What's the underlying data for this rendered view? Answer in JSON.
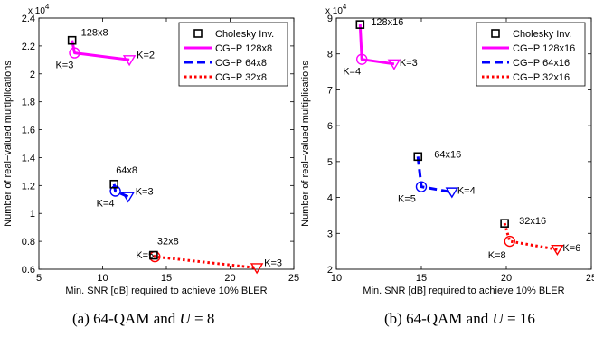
{
  "chart_data": [
    {
      "type": "line",
      "caption": {
        "prefix": "(a) 64-QAM and ",
        "var": "U",
        "suffix": " = 8"
      },
      "xlabel": "Min. SNR [dB] required to achieve 10% BLER",
      "ylabel": "Number of real−valued multiplications",
      "xlim": [
        5,
        25
      ],
      "ylim": [
        0.6,
        2.4
      ],
      "xticks": [
        5,
        10,
        15,
        20,
        25
      ],
      "yticks": [
        0.6,
        0.8,
        1,
        1.2,
        1.4,
        1.6,
        1.8,
        2,
        2.2,
        2.4
      ],
      "ytick_labels": [
        "0.6",
        "0.8",
        "1",
        "1.2",
        "1.4",
        "1.6",
        "1.8",
        "2",
        "2.2",
        "2.4"
      ],
      "y_exponent": "x 10",
      "y_exponent_power": "4",
      "grid": false,
      "legend_position": "top-right",
      "legend": [
        "Cholesky Inv.",
        "CG−P 128x8",
        "CG−P 64x8",
        "CG−P 32x8"
      ],
      "cholesky": [
        {
          "x": 7.6,
          "y": 2.24,
          "label": "128x8"
        },
        {
          "x": 10.9,
          "y": 1.21,
          "label": "64x8"
        },
        {
          "x": 14.0,
          "y": 0.7,
          "label": "32x8"
        }
      ],
      "series": [
        {
          "name": "CG−P 128x8",
          "color": "#ff00ff",
          "dash": "solid",
          "x": [
            7.6,
            7.8,
            12.1
          ],
          "y": [
            2.24,
            2.15,
            2.1
          ],
          "start_label": "K=3",
          "end_label": "K=2"
        },
        {
          "name": "CG−P 64x8",
          "color": "#0000ff",
          "dash": "dashed",
          "x": [
            10.9,
            11.0,
            12.0
          ],
          "y": [
            1.21,
            1.16,
            1.12
          ],
          "start_label": "K=4",
          "end_label": "K=3"
        },
        {
          "name": "CG−P 32x8",
          "color": "#ff0000",
          "dash": "dotted",
          "x": [
            14.0,
            14.1,
            22.1
          ],
          "y": [
            0.7,
            0.69,
            0.61
          ],
          "start_label": "K=5",
          "end_label": "K=3"
        }
      ]
    },
    {
      "type": "line",
      "caption": {
        "prefix": "(b) 64-QAM and ",
        "var": "U",
        "suffix": " = 16"
      },
      "xlabel": "Min. SNR [dB] required to achieve 10% BLER",
      "ylabel": "Number of real−valued multiplications",
      "xlim": [
        10,
        25
      ],
      "ylim": [
        2,
        9
      ],
      "xticks": [
        10,
        15,
        20,
        25
      ],
      "yticks": [
        2,
        3,
        4,
        5,
        6,
        7,
        8,
        9
      ],
      "ytick_labels": [
        "2",
        "3",
        "4",
        "5",
        "6",
        "7",
        "8",
        "9"
      ],
      "y_exponent": "x 10",
      "y_exponent_power": "4",
      "grid": false,
      "legend_position": "top-right",
      "legend": [
        "Cholesky Inv.",
        "CG−P 128x16",
        "CG−P 64x16",
        "CG−P 32x16"
      ],
      "cholesky": [
        {
          "x": 11.4,
          "y": 8.82,
          "label": "128x16"
        },
        {
          "x": 14.8,
          "y": 5.14,
          "label": "64x16"
        },
        {
          "x": 19.9,
          "y": 3.28,
          "label": "32x16"
        }
      ],
      "series": [
        {
          "name": "CG−P 128x16",
          "color": "#ff00ff",
          "dash": "solid",
          "x": [
            11.4,
            11.5,
            13.4
          ],
          "y": [
            8.82,
            7.85,
            7.72
          ],
          "start_label": "K=4",
          "end_label": "K=3"
        },
        {
          "name": "CG−P 64x16",
          "color": "#0000ff",
          "dash": "dashed",
          "x": [
            14.8,
            15.0,
            16.8
          ],
          "y": [
            5.14,
            4.3,
            4.15
          ],
          "start_label": "K=5",
          "end_label": "K=4"
        },
        {
          "name": "CG−P 32x16",
          "color": "#ff0000",
          "dash": "dotted",
          "x": [
            19.9,
            20.2,
            23.0
          ],
          "y": [
            3.28,
            2.78,
            2.55
          ],
          "start_label": "K=8",
          "end_label": "K=6"
        }
      ]
    }
  ]
}
